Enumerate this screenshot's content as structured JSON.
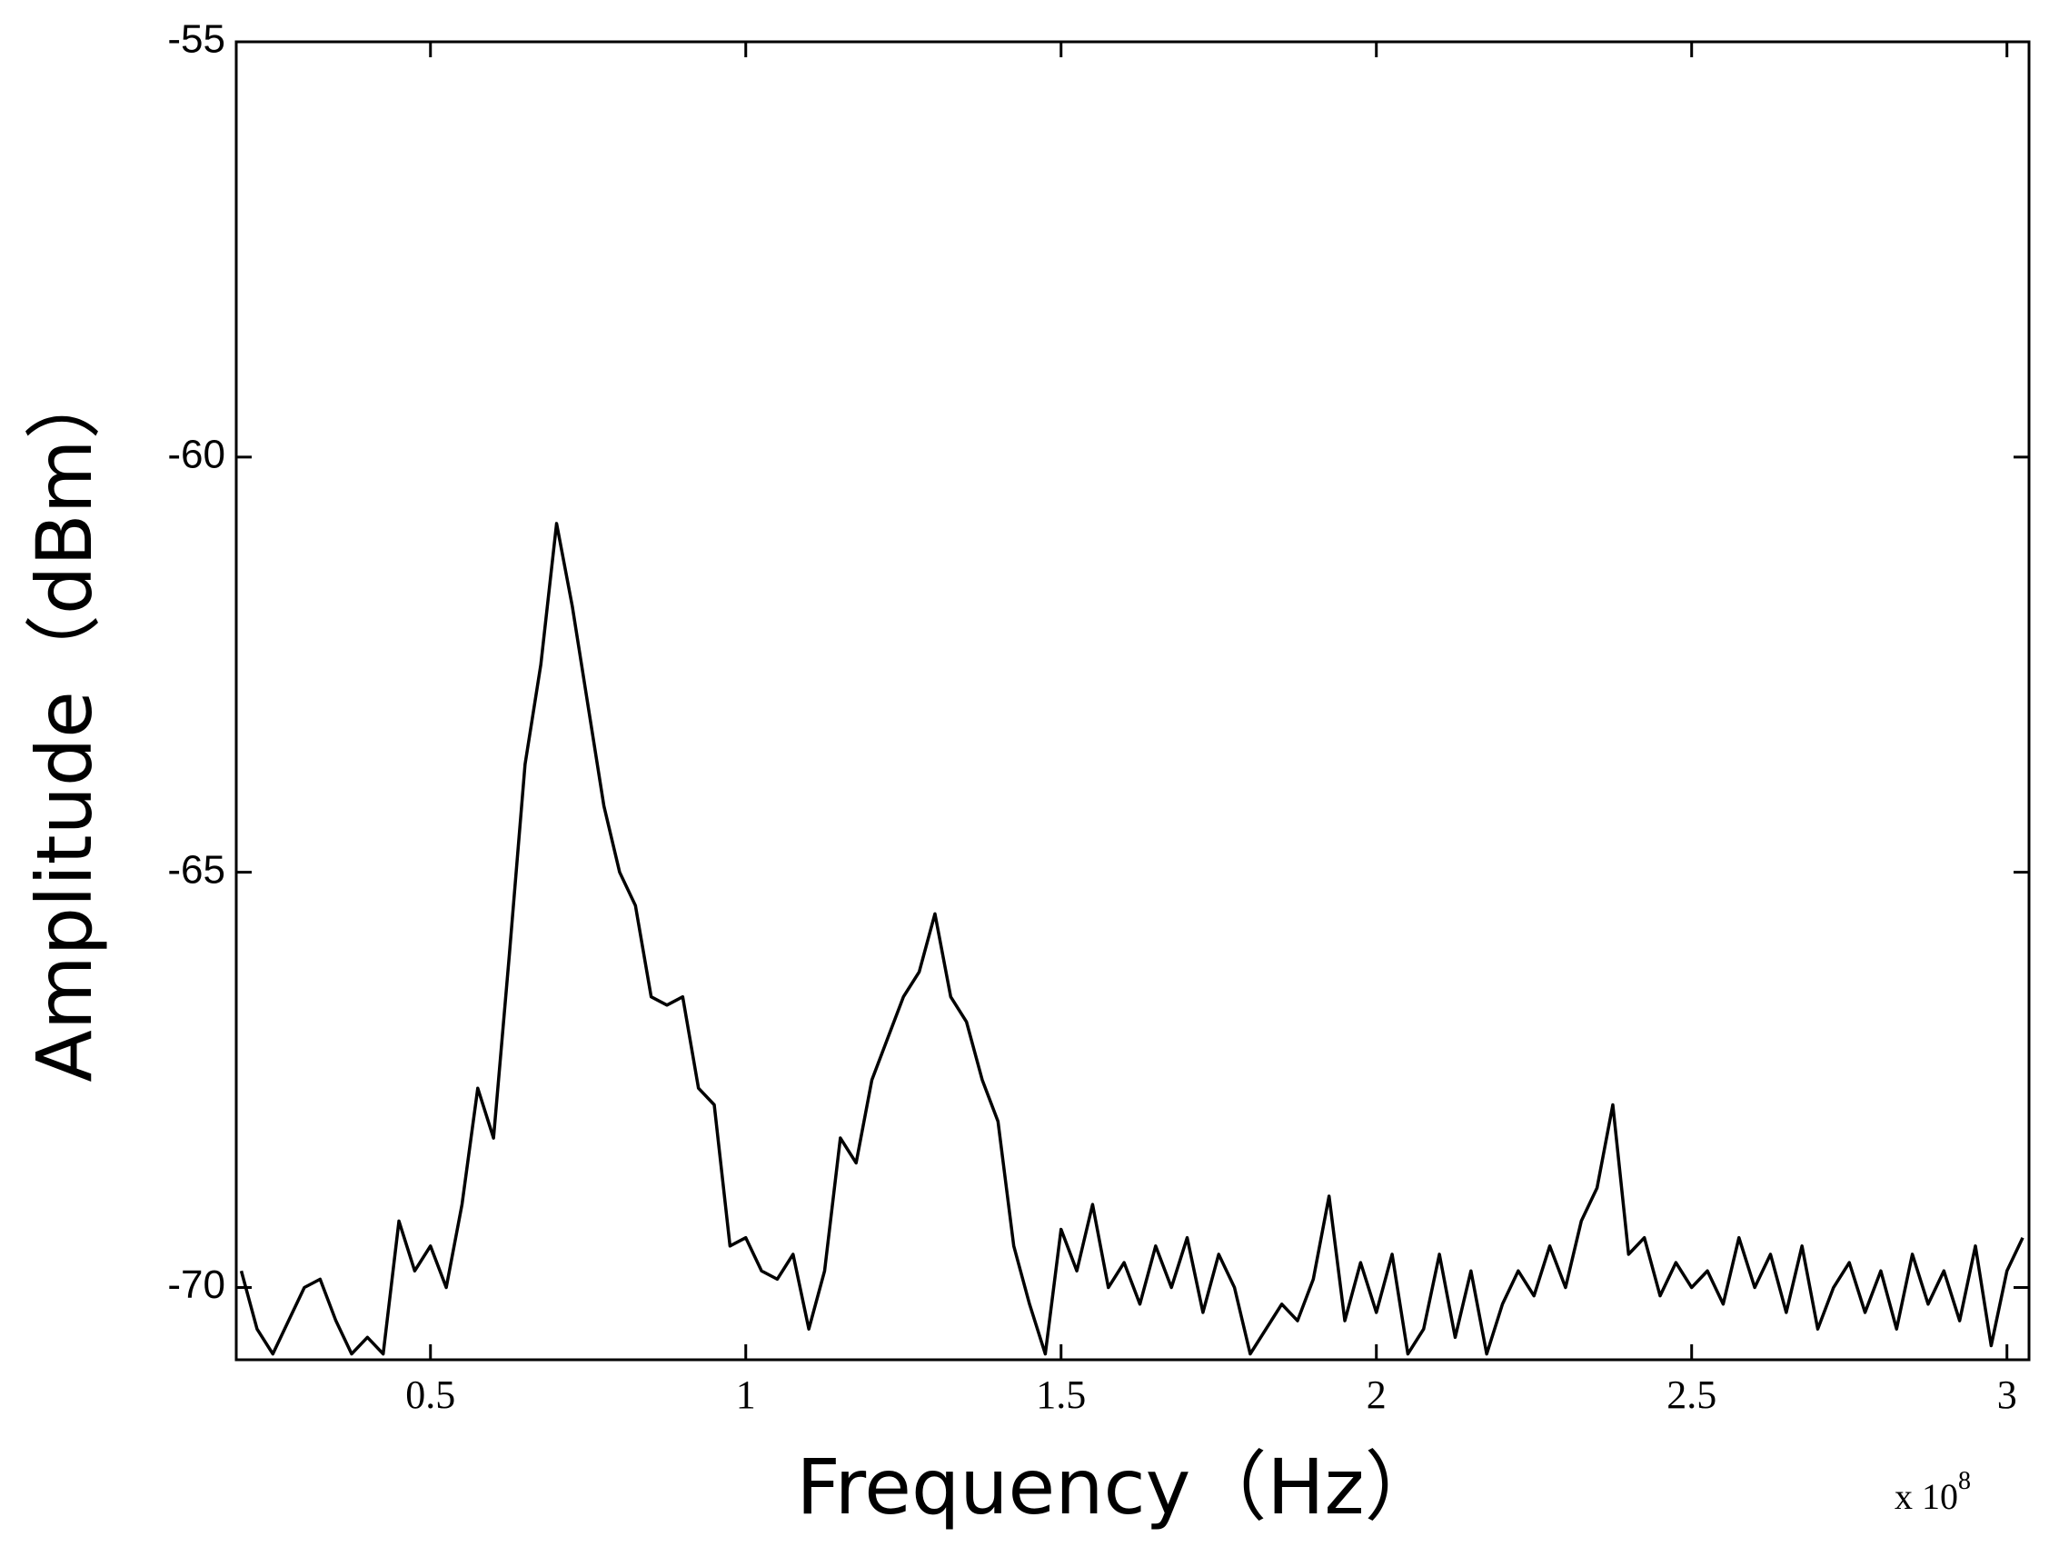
{
  "chart_data": {
    "type": "line",
    "xlabel": "Frequency（Hz）",
    "ylabel": "Amplitude（dBm）",
    "x_multiplier": {
      "base": "x 10",
      "exponent": "8"
    },
    "xlim": [
      0.192,
      3.035
    ],
    "ylim": [
      -70.87,
      -55
    ],
    "xticks": [
      0.5,
      1,
      1.5,
      2,
      2.5,
      3
    ],
    "yticks": [
      -70,
      -65,
      -60,
      -55
    ],
    "color": "#000000",
    "x": [
      0.2,
      0.225,
      0.25,
      0.275,
      0.3,
      0.325,
      0.35,
      0.375,
      0.4,
      0.425,
      0.45,
      0.475,
      0.5,
      0.525,
      0.55,
      0.575,
      0.6,
      0.625,
      0.65,
      0.675,
      0.7,
      0.725,
      0.75,
      0.775,
      0.8,
      0.825,
      0.85,
      0.875,
      0.9,
      0.925,
      0.95,
      0.975,
      1.0,
      1.025,
      1.05,
      1.075,
      1.1,
      1.125,
      1.15,
      1.175,
      1.2,
      1.225,
      1.25,
      1.275,
      1.3,
      1.325,
      1.35,
      1.375,
      1.4,
      1.425,
      1.45,
      1.475,
      1.5,
      1.525,
      1.55,
      1.575,
      1.6,
      1.625,
      1.65,
      1.675,
      1.7,
      1.725,
      1.75,
      1.775,
      1.8,
      1.825,
      1.85,
      1.875,
      1.9,
      1.925,
      1.95,
      1.975,
      2.0,
      2.025,
      2.05,
      2.075,
      2.1,
      2.125,
      2.15,
      2.175,
      2.2,
      2.225,
      2.25,
      2.275,
      2.3,
      2.325,
      2.35,
      2.375,
      2.4,
      2.425,
      2.45,
      2.475,
      2.5,
      2.525,
      2.55,
      2.575,
      2.6,
      2.625,
      2.65,
      2.675,
      2.7,
      2.725,
      2.75,
      2.775,
      2.8,
      2.825,
      2.85,
      2.875,
      2.9,
      2.925,
      2.95,
      2.975,
      3.0,
      3.025
    ],
    "values": [
      -69.8,
      -70.5,
      -70.8,
      -70.4,
      -70.0,
      -69.9,
      -70.4,
      -70.8,
      -70.6,
      -70.8,
      -69.2,
      -69.8,
      -69.5,
      -70.0,
      -69.0,
      -67.6,
      -68.2,
      -66.0,
      -63.7,
      -62.5,
      -60.8,
      -61.8,
      -63.0,
      -64.2,
      -65.0,
      -65.4,
      -66.5,
      -66.6,
      -66.5,
      -67.6,
      -67.8,
      -69.5,
      -69.4,
      -69.8,
      -69.9,
      -69.6,
      -70.5,
      -69.8,
      -68.2,
      -68.5,
      -67.5,
      -67.0,
      -66.5,
      -66.2,
      -65.5,
      -66.5,
      -66.8,
      -67.5,
      -68.0,
      -69.5,
      -70.2,
      -70.8,
      -69.3,
      -69.8,
      -69.0,
      -70.0,
      -69.7,
      -70.2,
      -69.5,
      -70.0,
      -69.4,
      -70.3,
      -69.6,
      -70.0,
      -70.8,
      -70.5,
      -70.2,
      -70.4,
      -69.9,
      -68.9,
      -70.4,
      -69.7,
      -70.3,
      -69.6,
      -70.8,
      -70.5,
      -69.6,
      -70.6,
      -69.8,
      -70.8,
      -70.2,
      -69.8,
      -70.1,
      -69.5,
      -70.0,
      -69.2,
      -68.8,
      -67.8,
      -69.6,
      -69.4,
      -70.1,
      -69.7,
      -70.0,
      -69.8,
      -70.2,
      -69.4,
      -70.0,
      -69.6,
      -70.3,
      -69.5,
      -70.5,
      -70.0,
      -69.7,
      -70.3,
      -69.8,
      -70.5,
      -69.6,
      -70.2,
      -69.8,
      -70.4,
      -69.5,
      -70.7,
      -69.8,
      -69.4
    ]
  }
}
